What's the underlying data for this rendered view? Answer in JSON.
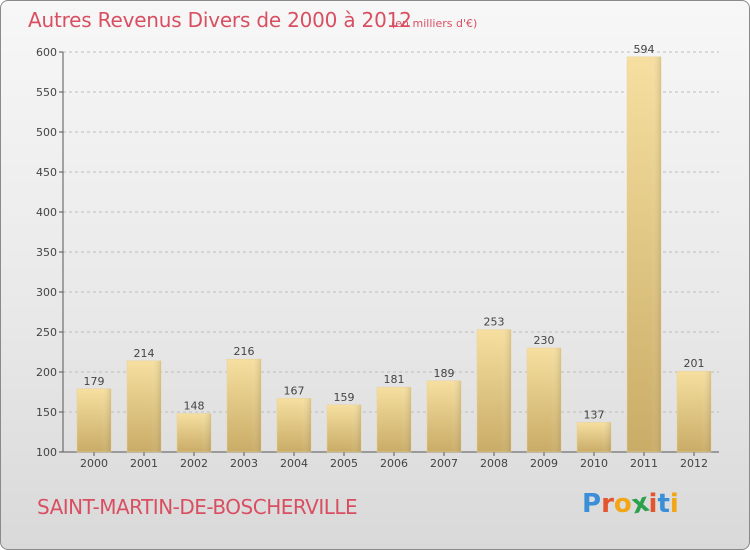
{
  "title": "Autres Revenus Divers de 2000 à 2012",
  "unit_note": "(en milliers d'€)",
  "location": "SAINT-MARTIN-DE-BOSCHERVILLE",
  "logo": {
    "text": "Proxiti",
    "letter_colors": [
      "#3a8fd8",
      "#e3552e",
      "#f2a516",
      "#2aa14a",
      "#e3552e",
      "#3a8fd8",
      "#f2a516"
    ]
  },
  "colors": {
    "title": "#d94f62",
    "bar_light": "#f6dfa0",
    "bar_dark": "#c9ac67",
    "grid": "#bdbdbd"
  },
  "chart_data": {
    "type": "bar",
    "title": "Autres Revenus Divers de 2000 à 2012",
    "xlabel": "",
    "ylabel": "",
    "categories": [
      "2000",
      "2001",
      "2002",
      "2003",
      "2004",
      "2005",
      "2006",
      "2007",
      "2008",
      "2009",
      "2010",
      "2011",
      "2012"
    ],
    "values": [
      179,
      214,
      148,
      216,
      167,
      159,
      181,
      189,
      253,
      230,
      137,
      594,
      201
    ],
    "ylim": [
      100,
      600
    ],
    "yticks": [
      100,
      150,
      200,
      250,
      300,
      350,
      400,
      450,
      500,
      550,
      600
    ],
    "grid": true,
    "legend": "none"
  }
}
